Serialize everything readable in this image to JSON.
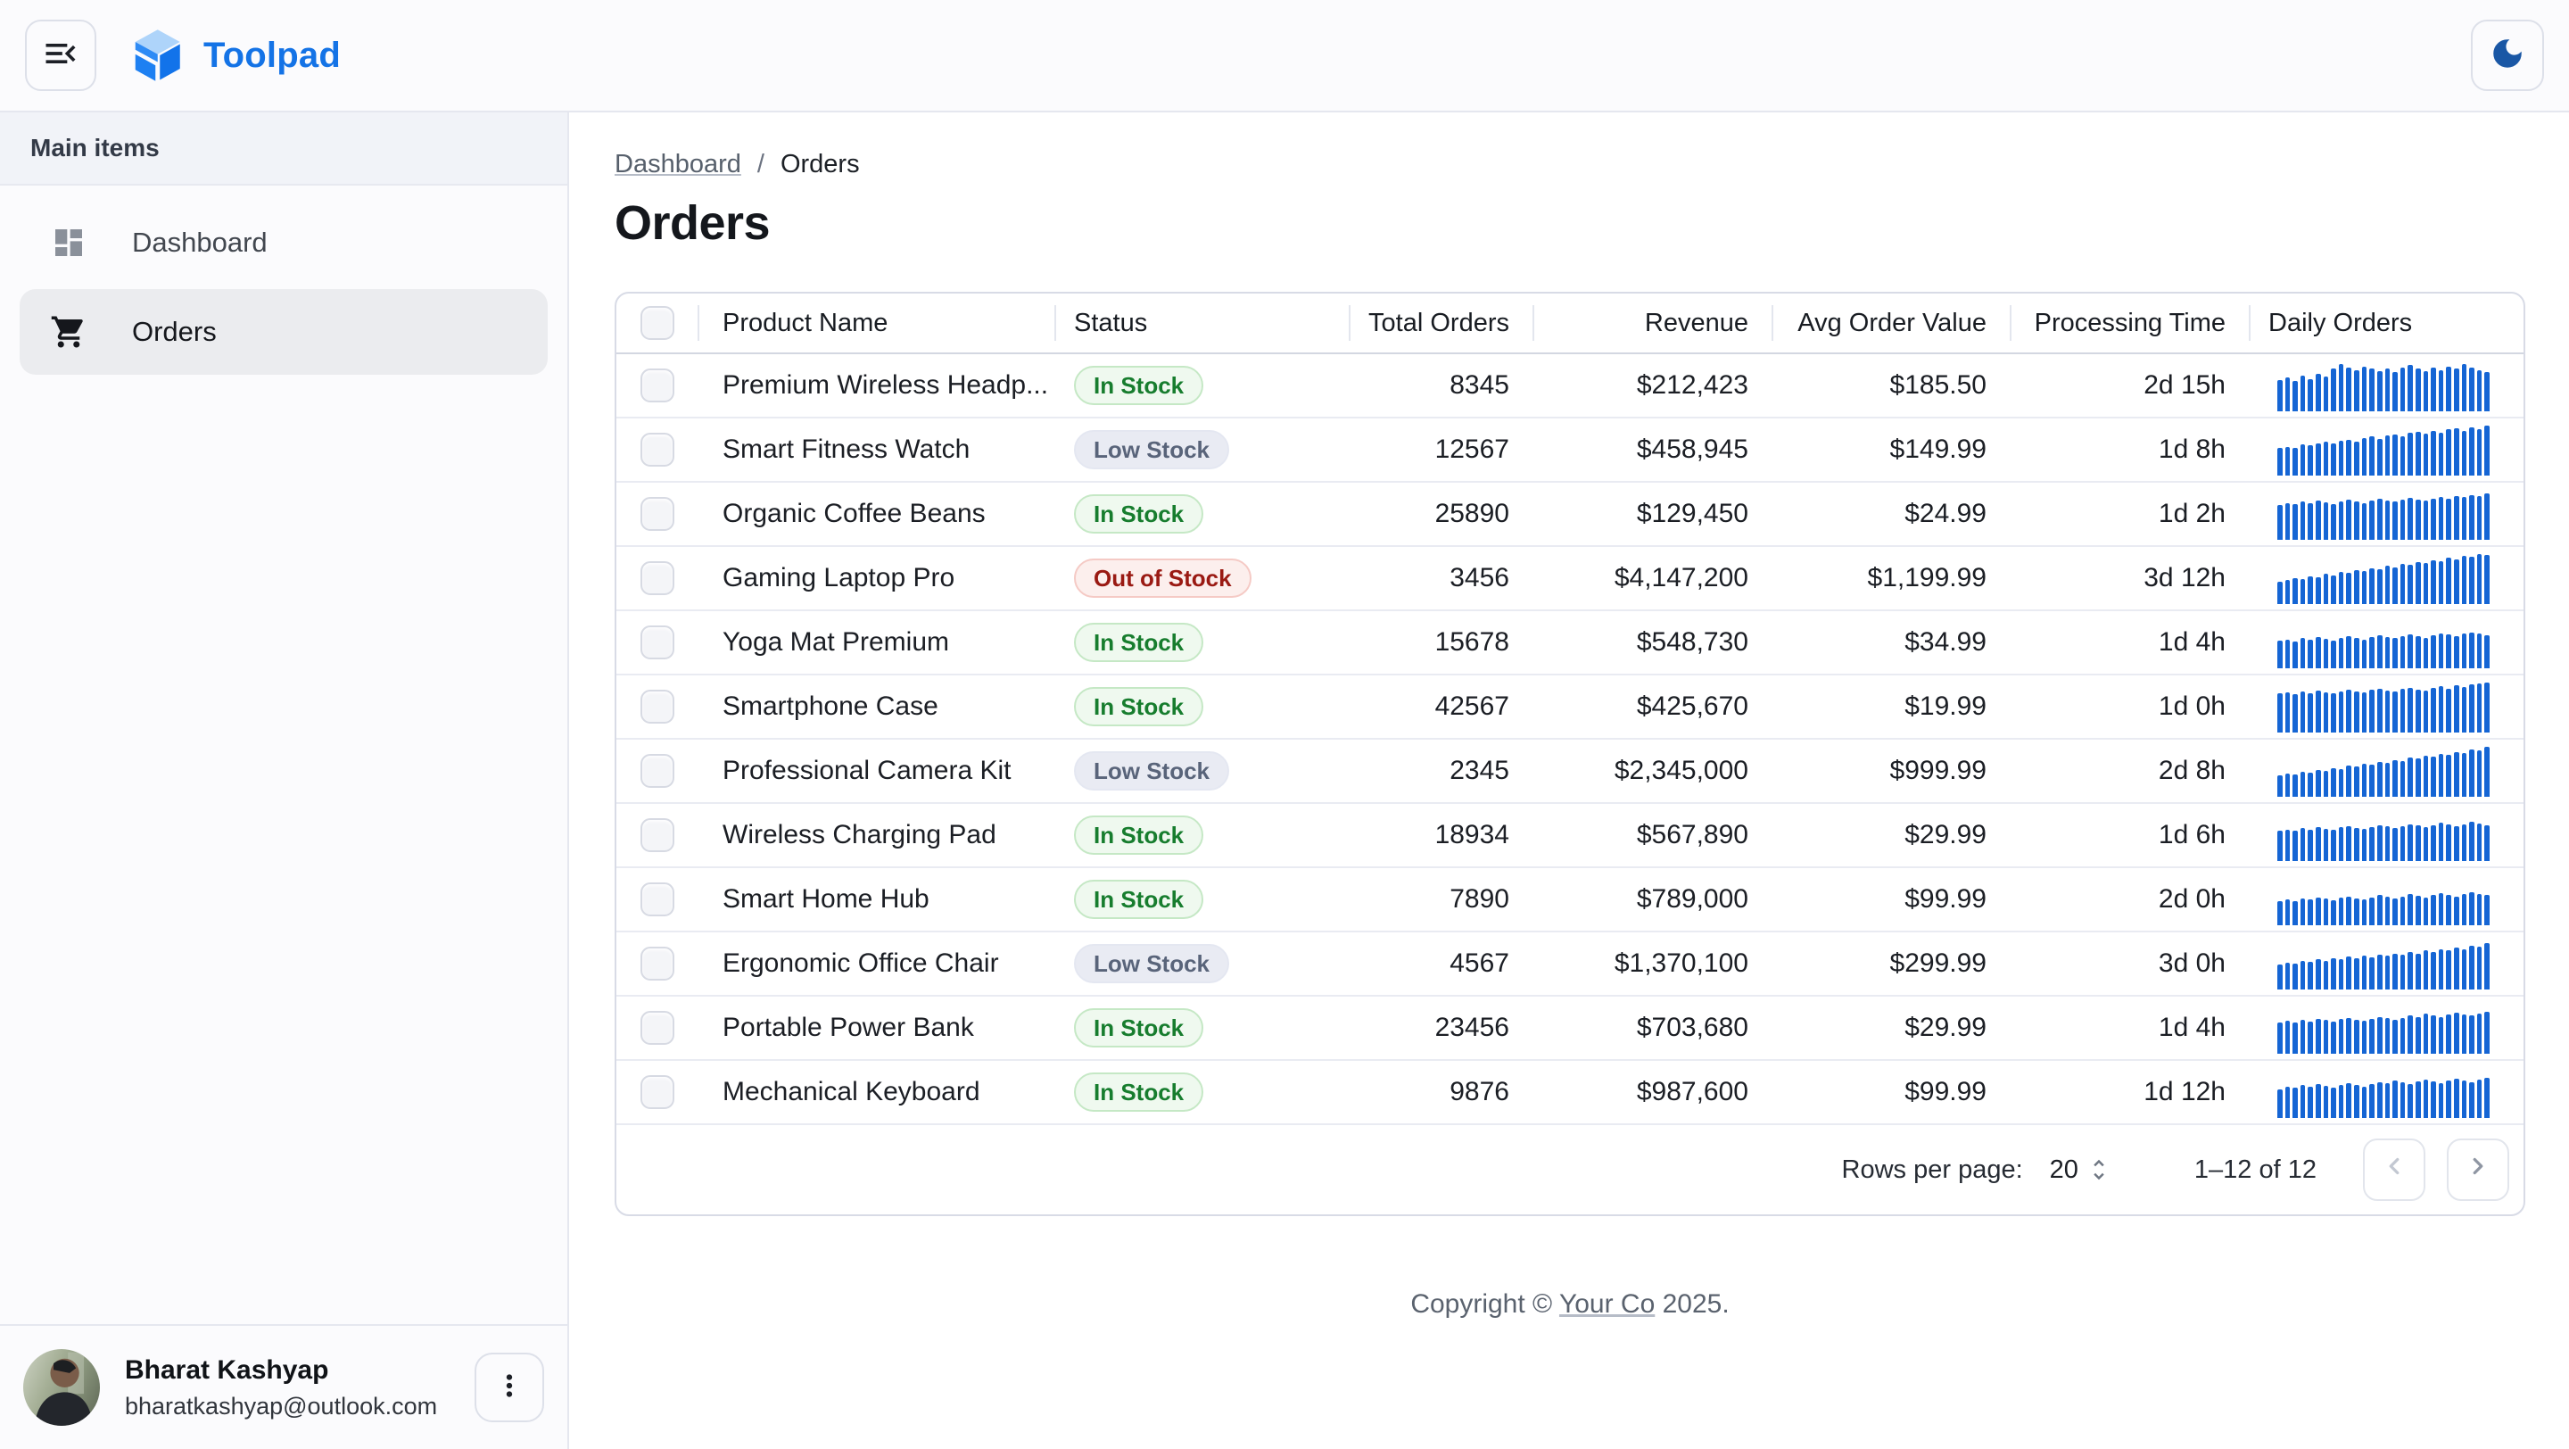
{
  "appbar": {
    "brand": "Toolpad"
  },
  "colors": {
    "brand_blue": "#1473e6",
    "moon_blue": "#1a57a5",
    "sparkline_blue": "#1565d4",
    "chip_in_stock_text": "#177d2e",
    "chip_low_stock_text": "#59647a",
    "chip_out_of_stock_text": "#9a1a13",
    "selected_nav_bg": "#ebecef"
  },
  "sidebar": {
    "section_label": "Main items",
    "items": [
      {
        "label": "Dashboard",
        "icon": "dashboard-icon",
        "selected": false
      },
      {
        "label": "Orders",
        "icon": "cart-icon",
        "selected": true
      }
    ],
    "user": {
      "name": "Bharat Kashyap",
      "email": "bharatkashyap@outlook.com"
    }
  },
  "breadcrumb": {
    "items": [
      "Dashboard",
      "Orders"
    ],
    "separator": "/"
  },
  "page": {
    "title": "Orders"
  },
  "table": {
    "columns": [
      "Product Name",
      "Status",
      "Total Orders",
      "Revenue",
      "Avg Order Value",
      "Processing Time",
      "Daily Orders"
    ],
    "rows": [
      {
        "product": "Premium Wireless Headp...",
        "status": "In Stock",
        "total_orders": "8345",
        "revenue": "$212,423",
        "avg_order_value": "$185.50",
        "processing_time": "2d 15h",
        "daily_orders": [
          0.62,
          0.68,
          0.6,
          0.72,
          0.65,
          0.75,
          0.7,
          0.85,
          0.95,
          0.88,
          0.82,
          0.9,
          0.85,
          0.8,
          0.85,
          0.78,
          0.88,
          0.92,
          0.85,
          0.8,
          0.88,
          0.82,
          0.9,
          0.85,
          0.95,
          0.88,
          0.82,
          0.78
        ]
      },
      {
        "product": "Smart Fitness Watch",
        "status": "Low Stock",
        "total_orders": "12567",
        "revenue": "$458,945",
        "avg_order_value": "$149.99",
        "processing_time": "1d 8h",
        "daily_orders": [
          0.55,
          0.58,
          0.56,
          0.62,
          0.6,
          0.65,
          0.68,
          0.64,
          0.7,
          0.72,
          0.68,
          0.75,
          0.78,
          0.74,
          0.8,
          0.82,
          0.78,
          0.85,
          0.88,
          0.84,
          0.9,
          0.86,
          0.92,
          0.95,
          0.9,
          0.96,
          0.93,
          1.0
        ]
      },
      {
        "product": "Organic Coffee Beans",
        "status": "In Stock",
        "total_orders": "25890",
        "revenue": "$129,450",
        "avg_order_value": "$24.99",
        "processing_time": "1d 2h",
        "daily_orders": [
          0.7,
          0.74,
          0.72,
          0.76,
          0.74,
          0.78,
          0.75,
          0.72,
          0.76,
          0.8,
          0.77,
          0.74,
          0.78,
          0.82,
          0.79,
          0.76,
          0.8,
          0.84,
          0.81,
          0.78,
          0.82,
          0.86,
          0.83,
          0.88,
          0.85,
          0.9,
          0.87,
          0.92
        ]
      },
      {
        "product": "Gaming Laptop Pro",
        "status": "Out of Stock",
        "total_orders": "3456",
        "revenue": "$4,147,200",
        "avg_order_value": "$1,199.99",
        "processing_time": "3d 12h",
        "daily_orders": [
          0.45,
          0.48,
          0.52,
          0.5,
          0.56,
          0.54,
          0.6,
          0.58,
          0.64,
          0.62,
          0.68,
          0.66,
          0.72,
          0.7,
          0.76,
          0.74,
          0.8,
          0.78,
          0.84,
          0.82,
          0.88,
          0.86,
          0.92,
          0.9,
          0.96,
          0.94,
          1.0,
          0.98
        ]
      },
      {
        "product": "Yoga Mat Premium",
        "status": "In Stock",
        "total_orders": "15678",
        "revenue": "$548,730",
        "avg_order_value": "$34.99",
        "processing_time": "1d 4h",
        "daily_orders": [
          0.55,
          0.58,
          0.54,
          0.6,
          0.57,
          0.62,
          0.59,
          0.56,
          0.61,
          0.64,
          0.6,
          0.57,
          0.62,
          0.66,
          0.63,
          0.6,
          0.65,
          0.68,
          0.64,
          0.61,
          0.66,
          0.7,
          0.67,
          0.64,
          0.69,
          0.72,
          0.7,
          0.66
        ]
      },
      {
        "product": "Smartphone Case",
        "status": "In Stock",
        "total_orders": "42567",
        "revenue": "$425,670",
        "avg_order_value": "$19.99",
        "processing_time": "1d 0h",
        "daily_orders": [
          0.78,
          0.8,
          0.77,
          0.82,
          0.79,
          0.84,
          0.81,
          0.78,
          0.83,
          0.86,
          0.82,
          0.8,
          0.85,
          0.88,
          0.84,
          0.82,
          0.87,
          0.9,
          0.86,
          0.84,
          0.89,
          0.92,
          0.88,
          0.94,
          0.91,
          0.96,
          0.98,
          1.0
        ]
      },
      {
        "product": "Professional Camera Kit",
        "status": "Low Stock",
        "total_orders": "2345",
        "revenue": "$2,345,000",
        "avg_order_value": "$999.99",
        "processing_time": "2d 8h",
        "daily_orders": [
          0.42,
          0.46,
          0.44,
          0.5,
          0.48,
          0.54,
          0.52,
          0.58,
          0.56,
          0.62,
          0.6,
          0.66,
          0.64,
          0.7,
          0.68,
          0.74,
          0.72,
          0.78,
          0.76,
          0.82,
          0.8,
          0.86,
          0.84,
          0.9,
          0.88,
          0.94,
          0.92,
          1.0
        ]
      },
      {
        "product": "Wireless Charging Pad",
        "status": "In Stock",
        "total_orders": "18934",
        "revenue": "$567,890",
        "avg_order_value": "$29.99",
        "processing_time": "1d 6h",
        "daily_orders": [
          0.6,
          0.63,
          0.61,
          0.66,
          0.63,
          0.68,
          0.65,
          0.62,
          0.67,
          0.7,
          0.66,
          0.64,
          0.68,
          0.72,
          0.69,
          0.66,
          0.7,
          0.74,
          0.71,
          0.68,
          0.72,
          0.76,
          0.73,
          0.7,
          0.74,
          0.78,
          0.75,
          0.72
        ]
      },
      {
        "product": "Smart Home Hub",
        "status": "In Stock",
        "total_orders": "7890",
        "revenue": "$789,000",
        "avg_order_value": "$99.99",
        "processing_time": "2d 0h",
        "daily_orders": [
          0.48,
          0.51,
          0.49,
          0.54,
          0.51,
          0.56,
          0.53,
          0.5,
          0.55,
          0.58,
          0.54,
          0.52,
          0.56,
          0.6,
          0.57,
          0.54,
          0.58,
          0.62,
          0.59,
          0.56,
          0.6,
          0.64,
          0.61,
          0.58,
          0.62,
          0.66,
          0.63,
          0.6
        ]
      },
      {
        "product": "Ergonomic Office Chair",
        "status": "Low Stock",
        "total_orders": "4567",
        "revenue": "$1,370,100",
        "avg_order_value": "$299.99",
        "processing_time": "3d 0h",
        "daily_orders": [
          0.5,
          0.54,
          0.52,
          0.58,
          0.55,
          0.6,
          0.58,
          0.62,
          0.6,
          0.66,
          0.63,
          0.68,
          0.65,
          0.7,
          0.68,
          0.72,
          0.7,
          0.75,
          0.72,
          0.78,
          0.75,
          0.8,
          0.78,
          0.84,
          0.81,
          0.88,
          0.85,
          0.92
        ]
      },
      {
        "product": "Portable Power Bank",
        "status": "In Stock",
        "total_orders": "23456",
        "revenue": "$703,680",
        "avg_order_value": "$29.99",
        "processing_time": "1d 4h",
        "daily_orders": [
          0.62,
          0.66,
          0.63,
          0.68,
          0.65,
          0.7,
          0.67,
          0.64,
          0.69,
          0.72,
          0.68,
          0.66,
          0.7,
          0.74,
          0.71,
          0.68,
          0.72,
          0.76,
          0.73,
          0.8,
          0.76,
          0.74,
          0.78,
          0.82,
          0.79,
          0.76,
          0.8,
          0.84
        ]
      },
      {
        "product": "Mechanical Keyboard",
        "status": "In Stock",
        "total_orders": "9876",
        "revenue": "$987,600",
        "avg_order_value": "$99.99",
        "processing_time": "1d 12h",
        "daily_orders": [
          0.58,
          0.62,
          0.6,
          0.66,
          0.62,
          0.68,
          0.64,
          0.61,
          0.66,
          0.7,
          0.66,
          0.63,
          0.68,
          0.72,
          0.69,
          0.75,
          0.71,
          0.68,
          0.73,
          0.77,
          0.73,
          0.7,
          0.75,
          0.79,
          0.75,
          0.72,
          0.77,
          0.81
        ]
      }
    ],
    "status_classes": {
      "In Stock": "chip-green",
      "Low Stock": "chip-gray",
      "Out of Stock": "chip-red"
    },
    "pagination": {
      "rows_per_page_label": "Rows per page:",
      "rows_per_page": "20",
      "range": "1–12 of 12"
    }
  },
  "footer": {
    "prefix": "Copyright © ",
    "link": "Your Co",
    "suffix": " 2025."
  }
}
